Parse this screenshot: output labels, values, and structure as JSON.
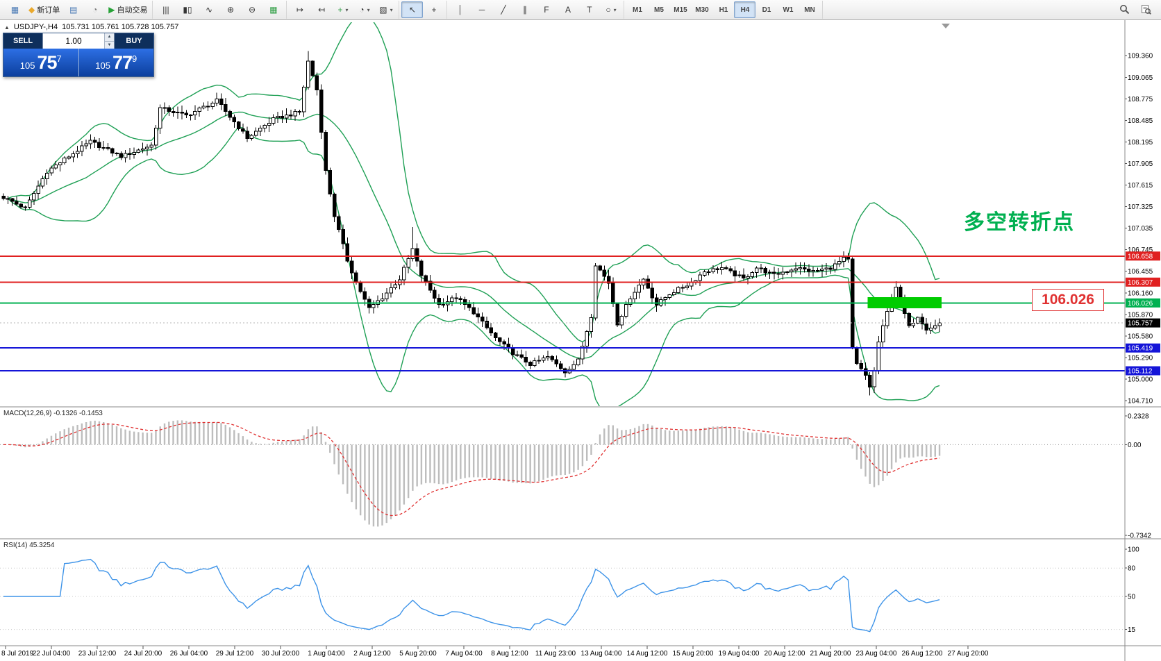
{
  "toolbar": {
    "groups": [
      {
        "name": "file-group",
        "items": [
          {
            "name": "new-chart",
            "glyph": "▦",
            "color": "#4a7ab5"
          },
          {
            "name": "new-order",
            "glyph": "◆",
            "color": "#eaa92d",
            "label": "新订单"
          },
          {
            "name": "market-watch",
            "glyph": "▤",
            "color": "#4a7ab5"
          },
          {
            "name": "navigator",
            "glyph": "◔",
            "color": "#777777"
          },
          {
            "name": "autotrading",
            "glyph": "▶",
            "color": "#27a237",
            "label": "自动交易"
          }
        ]
      },
      {
        "name": "chart-mode-group",
        "items": [
          {
            "name": "bar-chart-mode",
            "glyph": "|||"
          },
          {
            "name": "candlestick-mode",
            "glyph": "▮▯"
          },
          {
            "name": "line-chart-mode",
            "glyph": "∿"
          },
          {
            "name": "zoom-in",
            "glyph": "⊕"
          },
          {
            "name": "zoom-out",
            "glyph": "⊖"
          },
          {
            "name": "tile-windows",
            "glyph": "▦",
            "color": "#2f9e44"
          }
        ]
      },
      {
        "name": "scroll-group",
        "items": [
          {
            "name": "auto-scroll",
            "glyph": "↦"
          },
          {
            "name": "chart-shift",
            "glyph": "↤"
          },
          {
            "name": "indicators",
            "glyph": "+",
            "color": "#2f9e44",
            "dropdown": true
          },
          {
            "name": "periods",
            "glyph": "◔",
            "dropdown": true
          },
          {
            "name": "templates",
            "glyph": "▧",
            "dropdown": true
          }
        ]
      },
      {
        "name": "cursor-group",
        "items": [
          {
            "name": "cursor",
            "glyph": "↖",
            "active": true
          },
          {
            "name": "crosshair",
            "glyph": "+"
          }
        ]
      },
      {
        "name": "draw-group",
        "items": [
          {
            "name": "vertical-line-tool",
            "glyph": "│"
          },
          {
            "name": "horizontal-line-tool",
            "glyph": "─"
          },
          {
            "name": "trendline-tool",
            "glyph": "╱"
          },
          {
            "name": "channel-tool",
            "glyph": "∥"
          },
          {
            "name": "fibonacci-tool",
            "glyph": "F"
          },
          {
            "name": "text-tool",
            "glyph": "A"
          },
          {
            "name": "label-tool",
            "glyph": "T"
          },
          {
            "name": "shapes-tool",
            "glyph": "○",
            "dropdown": true
          }
        ]
      },
      {
        "name": "timeframe-group",
        "type": "timeframes",
        "items": [
          {
            "name": "tf-m1",
            "label": "M1"
          },
          {
            "name": "tf-m5",
            "label": "M5"
          },
          {
            "name": "tf-m15",
            "label": "M15"
          },
          {
            "name": "tf-m30",
            "label": "M30"
          },
          {
            "name": "tf-h1",
            "label": "H1"
          },
          {
            "name": "tf-h4",
            "label": "H4",
            "active": true
          },
          {
            "name": "tf-d1",
            "label": "D1"
          },
          {
            "name": "tf-w1",
            "label": "W1"
          },
          {
            "name": "tf-mn",
            "label": "MN"
          }
        ]
      },
      {
        "name": "search-group",
        "align": "right",
        "items": [
          {
            "name": "symbol-search",
            "svg": "magnifier"
          },
          {
            "name": "find",
            "svg": "doc-magnifier"
          }
        ]
      }
    ]
  },
  "quote_bar": {
    "collapse_glyph": "▲",
    "symbol": "USDJPY-,H4",
    "ohlc": "105.731 105.761 105.728 105.757"
  },
  "trade_panel": {
    "sell_label": "SELL",
    "buy_label": "BUY",
    "volume": "1.00",
    "spin_up_glyph": "▲",
    "spin_down_glyph": "▼",
    "sell": {
      "prefix": "105",
      "big": "75",
      "sup": "7"
    },
    "buy": {
      "prefix": "105",
      "big": "77",
      "sup": "9"
    }
  },
  "chart_data": {
    "type": "candlestick",
    "symbol": "USDJPY-",
    "timeframe": "H4",
    "current_price": 105.757,
    "price_axis_labels": [
      "109.360",
      "109.065",
      "108.775",
      "108.485",
      "108.195",
      "107.905",
      "107.615",
      "107.325",
      "107.035",
      "106.745",
      "106.455",
      "106.160",
      "105.870",
      "105.580",
      "105.290",
      "105.000",
      "104.710"
    ],
    "time_labels": [
      "8 Jul 2019",
      "22 Jul 04:00",
      "23 Jul 12:00",
      "24 Jul 20:00",
      "26 Jul 04:00",
      "29 Jul 12:00",
      "30 Jul 20:00",
      "1 Aug 04:00",
      "2 Aug 12:00",
      "5 Aug 20:00",
      "7 Aug 04:00",
      "8 Aug 12:00",
      "11 Aug 23:00",
      "13 Aug 04:00",
      "14 Aug 12:00",
      "15 Aug 20:00",
      "19 Aug 04:00",
      "20 Aug 12:00",
      "21 Aug 20:00",
      "23 Aug 04:00",
      "26 Aug 12:00",
      "27 Aug 20:00"
    ],
    "levels": [
      {
        "price": 106.658,
        "color": "#e02020",
        "type": "resistance"
      },
      {
        "price": 106.307,
        "color": "#e02020",
        "type": "resistance"
      },
      {
        "price": 106.026,
        "color": "#00b050",
        "type": "pivot"
      },
      {
        "price": 105.419,
        "color": "#1414d8",
        "type": "support"
      },
      {
        "price": 105.112,
        "color": "#1414d8",
        "type": "support"
      }
    ],
    "indicators": {
      "bollinger": {
        "period": 20,
        "deviation": 2,
        "color": "#1fa055"
      },
      "macd": {
        "label": "MACD(12,26,9)",
        "values_text": "-0.1326 -0.1453",
        "axis": [
          "0.2328",
          "0.00",
          "-0.7342"
        ],
        "max": 0.2328,
        "min": -0.7342
      },
      "rsi": {
        "label": "RSI(14)",
        "value_text": "45.3254",
        "axis": [
          100,
          80,
          50,
          15
        ],
        "levels": [
          80,
          50,
          15
        ],
        "color": "#3d93e8"
      }
    },
    "candles": {
      "count": 216,
      "waypoints": [
        [
          0,
          107.45
        ],
        [
          5,
          107.3
        ],
        [
          10,
          107.8
        ],
        [
          20,
          108.2
        ],
        [
          27,
          108.0
        ],
        [
          34,
          108.15
        ],
        [
          36,
          108.65
        ],
        [
          42,
          108.55
        ],
        [
          49,
          108.75
        ],
        [
          56,
          108.25
        ],
        [
          62,
          108.5
        ],
        [
          68,
          108.6
        ],
        [
          70,
          109.28
        ],
        [
          72,
          108.9
        ],
        [
          74,
          107.8
        ],
        [
          76,
          107.2
        ],
        [
          79,
          106.6
        ],
        [
          81,
          106.3
        ],
        [
          84,
          105.95
        ],
        [
          87,
          106.1
        ],
        [
          91,
          106.35
        ],
        [
          94,
          106.75
        ],
        [
          96,
          106.4
        ],
        [
          100,
          106.0
        ],
        [
          104,
          106.1
        ],
        [
          108,
          105.9
        ],
        [
          113,
          105.55
        ],
        [
          117,
          105.35
        ],
        [
          121,
          105.2
        ],
        [
          125,
          105.3
        ],
        [
          129,
          105.1
        ],
        [
          132,
          105.25
        ],
        [
          135,
          105.85
        ],
        [
          136,
          106.55
        ],
        [
          139,
          106.3
        ],
        [
          141,
          105.75
        ],
        [
          144,
          106.1
        ],
        [
          147,
          106.35
        ],
        [
          150,
          106.0
        ],
        [
          153,
          106.15
        ],
        [
          158,
          106.3
        ],
        [
          161,
          106.45
        ],
        [
          165,
          106.5
        ],
        [
          170,
          106.35
        ],
        [
          173,
          106.5
        ],
        [
          177,
          106.4
        ],
        [
          182,
          106.5
        ],
        [
          186,
          106.45
        ],
        [
          190,
          106.5
        ],
        [
          193,
          106.62
        ],
        [
          194,
          106.6
        ],
        [
          195,
          105.4
        ],
        [
          196,
          105.2
        ],
        [
          198,
          105.05
        ],
        [
          199,
          104.9
        ],
        [
          200,
          105.1
        ],
        [
          201,
          105.5
        ],
        [
          203,
          105.9
        ],
        [
          204,
          106.1
        ],
        [
          205,
          106.25
        ],
        [
          206,
          106.05
        ],
        [
          208,
          105.7
        ],
        [
          210,
          105.85
        ],
        [
          212,
          105.68
        ],
        [
          214,
          105.72
        ],
        [
          215,
          105.757
        ]
      ],
      "spikes": [
        {
          "i": 70,
          "high": 109.42
        },
        {
          "i": 94,
          "high": 107.05
        },
        {
          "i": 199,
          "low": 104.78
        }
      ]
    },
    "annotations": {
      "cn_note": {
        "text": "多空转折点",
        "color": "#00b050"
      },
      "price_callout": {
        "text": "106.026",
        "color": "#e03131"
      },
      "highlight_rect": {
        "x1_index": 199,
        "x2_index": 215,
        "price_top": 106.105,
        "price_bottom": 105.955,
        "color": "#00cc00"
      }
    }
  }
}
